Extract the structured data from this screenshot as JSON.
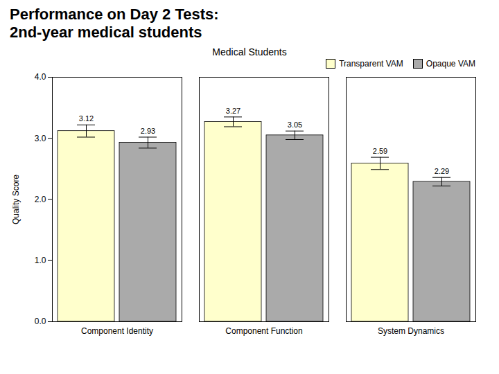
{
  "title": "Performance on Day 2 Tests:",
  "subtitle": "2nd-year medical students",
  "chart_data": {
    "type": "bar",
    "title": "Medical Students",
    "y_label": "Quality Score",
    "categories": [
      "Component Identity",
      "Component Function",
      "System Dynamics"
    ],
    "series": [
      {
        "name": "Transparent VAM",
        "color": "#FFFFCC",
        "values": [
          3.12,
          3.27,
          2.59
        ],
        "errors": [
          0.1,
          0.08,
          0.1
        ]
      },
      {
        "name": "Opaque VAM",
        "color": "#AAAAAA",
        "values": [
          2.93,
          3.05,
          2.29
        ],
        "errors": [
          0.09,
          0.07,
          0.07
        ]
      }
    ],
    "ylim": [
      0.0,
      4.0
    ],
    "yticks": [
      {
        "value": 0,
        "label": "0.0"
      },
      {
        "value": 1,
        "label": "1.0"
      },
      {
        "value": 2,
        "label": "2.0"
      },
      {
        "value": 3,
        "label": "3.0"
      },
      {
        "value": 4,
        "label": "4.0"
      }
    ],
    "grid": false,
    "legend": "upper right",
    "data_labels": true
  }
}
